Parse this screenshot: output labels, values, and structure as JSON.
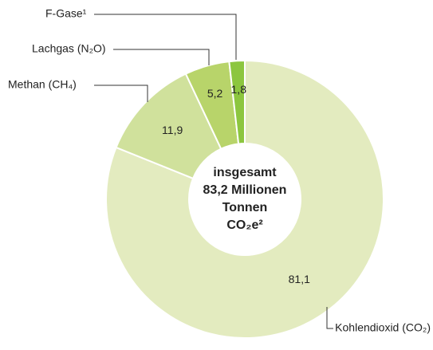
{
  "chart_data": {
    "type": "donut",
    "categories": [
      "Kohlendioxid (CO₂)",
      "Methan (CH₄)",
      "Lachgas (N₂O)",
      "F-Gase¹"
    ],
    "values": [
      81.1,
      11.9,
      5.2,
      1.8
    ],
    "value_labels": [
      "81,1",
      "11,9",
      "5,2",
      "1,8"
    ],
    "colors": [
      "#e3ebbf",
      "#d0e19c",
      "#b8d46a",
      "#8cc63f"
    ],
    "center_label": [
      "insgesamt",
      "83,2 Millionen",
      "Tonnen",
      "CO₂e²"
    ]
  }
}
